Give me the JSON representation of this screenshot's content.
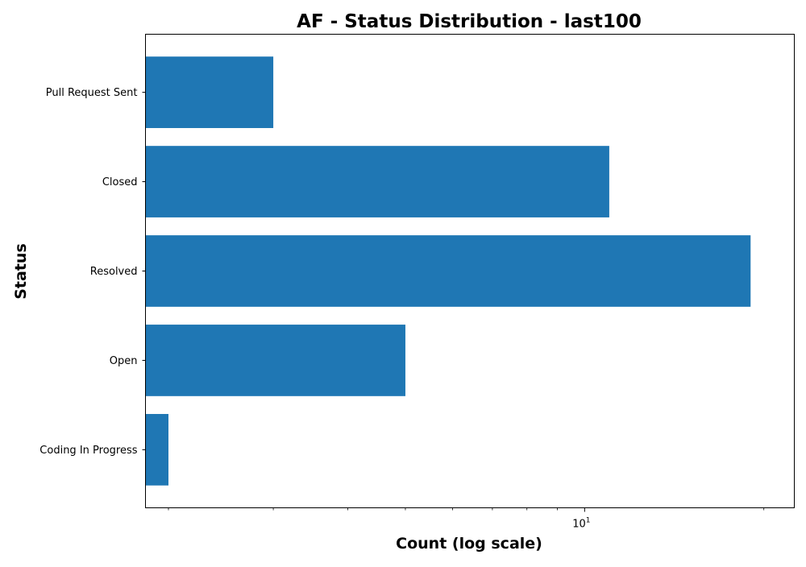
{
  "chart_data": {
    "type": "bar",
    "orientation": "horizontal",
    "title": "AF - Status Distribution - last100",
    "xlabel": "Count (log scale)",
    "ylabel": "Status",
    "x_scale": "log",
    "xlim": [
      1.83,
      22.5
    ],
    "x_major_ticks": [
      {
        "base": "10",
        "exponent": "1",
        "value": 10
      }
    ],
    "x_minor_ticks": [
      2,
      3,
      4,
      5,
      6,
      7,
      8,
      9,
      20
    ],
    "categories": [
      "Pull Request Sent",
      "Closed",
      "Resolved",
      "Open",
      "Coding In Progress"
    ],
    "values": [
      3,
      11,
      19,
      5,
      2
    ],
    "bar_color": "#1f77b4",
    "grid": false,
    "legend": "none"
  }
}
